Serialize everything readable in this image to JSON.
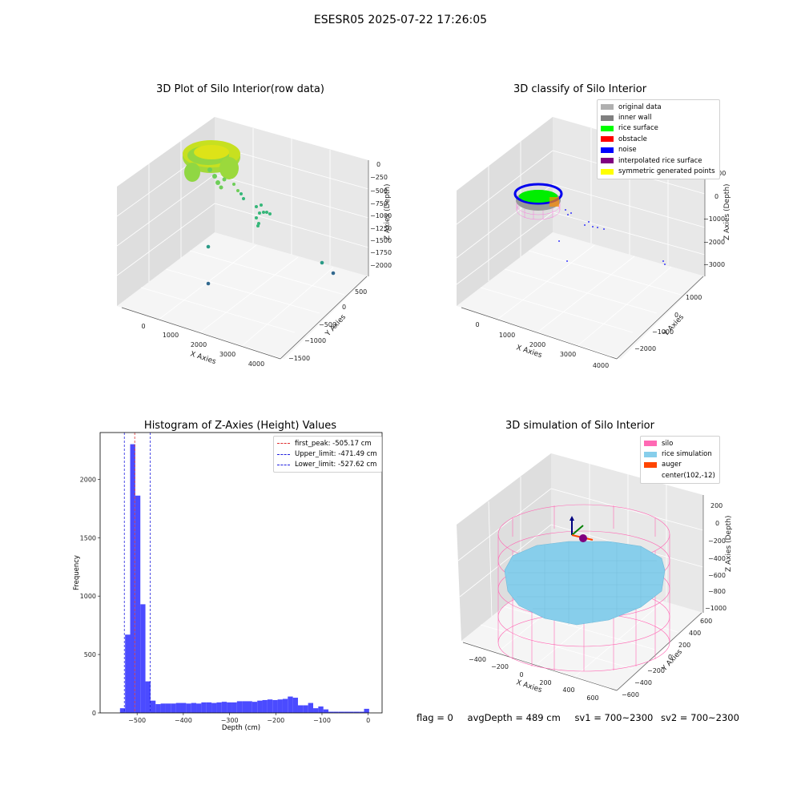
{
  "page": {
    "suptitle": "ESESR05 2025-07-22 17:26:05",
    "status": {
      "flag": "flag = 0",
      "avg_depth": "avgDepth = 489 cm",
      "sv1": "sv1 = 700~2300",
      "sv2": "sv2 = 700~2300"
    }
  },
  "chart_data": [
    {
      "type": "scatter",
      "title": "3D Plot of Silo Interior(row data)",
      "xlabel": "X Axies",
      "ylabel": "Y Axies",
      "zlabel": "Z Axies (Depth)",
      "x_ticks": [
        "0",
        "1000",
        "2000",
        "3000",
        "4000"
      ],
      "y_ticks": [
        "500",
        "0",
        "−500",
        "−1000",
        "−1500"
      ],
      "z_ticks": [
        "0",
        "−250",
        "−500",
        "−750",
        "−1000",
        "−1250",
        "−1500",
        "−1750",
        "−2000"
      ],
      "colormap": [
        "#440154",
        "#31688e",
        "#35b779",
        "#90d743",
        "#fde725"
      ]
    },
    {
      "type": "scatter",
      "title": "3D classify of Silo Interior",
      "xlabel": "X Axies",
      "ylabel": "Y Axies",
      "zlabel": "Z Axies (Depth)",
      "x_ticks": [
        "0",
        "1000",
        "2000",
        "3000",
        "4000"
      ],
      "y_ticks": [
        "1000",
        "0",
        "−1000",
        "−2000"
      ],
      "z_ticks": [
        "1000",
        "0",
        "−1000",
        "−2000",
        "−3000"
      ],
      "legend": [
        {
          "label": "original data",
          "color": "#b0b0b0"
        },
        {
          "label": "inner wall",
          "color": "#808080"
        },
        {
          "label": "rice surface",
          "color": "#00ff00"
        },
        {
          "label": "obstacle",
          "color": "#ff0000"
        },
        {
          "label": "noise",
          "color": "#0000ff"
        },
        {
          "label": "interpolated rice surface",
          "color": "#800080"
        },
        {
          "label": "symmetric generated points",
          "color": "#ffff00"
        }
      ]
    },
    {
      "type": "bar",
      "title": "Histogram of Z-Axies (Height) Values",
      "xlabel": "Depth (cm)",
      "ylabel": "Frequency",
      "xlim": [
        -580,
        30
      ],
      "ylim": [
        0,
        2400
      ],
      "x_ticks": [
        -500,
        -400,
        -300,
        -200,
        -100,
        0
      ],
      "x_tick_labels": [
        "−500",
        "−400",
        "−300",
        "−200",
        "−100",
        "0"
      ],
      "y_ticks": [
        0,
        500,
        1000,
        1500,
        2000
      ],
      "bin_width": 11.0,
      "bin_starts": [
        -537,
        -526,
        -515,
        -504,
        -493,
        -482,
        -471,
        -460,
        -449,
        -438,
        -427,
        -416,
        -405,
        -394,
        -383,
        -372,
        -361,
        -350,
        -339,
        -328,
        -317,
        -306,
        -295,
        -284,
        -273,
        -262,
        -251,
        -240,
        -229,
        -218,
        -207,
        -196,
        -185,
        -174,
        -163,
        -152,
        -141,
        -130,
        -119,
        -108,
        -97,
        -86,
        -75,
        -64,
        -53,
        -42,
        -31,
        -20,
        -9
      ],
      "values": [
        40,
        670,
        2300,
        1860,
        930,
        270,
        105,
        75,
        80,
        80,
        80,
        85,
        85,
        80,
        85,
        80,
        90,
        90,
        85,
        90,
        95,
        90,
        90,
        100,
        100,
        100,
        95,
        105,
        110,
        115,
        110,
        115,
        120,
        140,
        130,
        65,
        65,
        85,
        40,
        55,
        30,
        10,
        10,
        10,
        10,
        10,
        10,
        10,
        35
      ],
      "bar_color": "#4b4bff",
      "lines": [
        {
          "label": "first_peak: -505.17 cm",
          "x": -505.17,
          "color": "#e03030"
        },
        {
          "label": "Upper_limit: -471.49 cm",
          "x": -471.49,
          "color": "#2020e0"
        },
        {
          "label": "Lower_limit: -527.62 cm",
          "x": -527.62,
          "color": "#2020e0"
        }
      ]
    },
    {
      "type": "scatter",
      "title": "3D simulation of Silo Interior",
      "xlabel": "X Axies",
      "ylabel": "Y Axies",
      "zlabel": "Z Axies (Depth)",
      "x_ticks": [
        "−400",
        "−200",
        "0",
        "200",
        "400",
        "600"
      ],
      "y_ticks": [
        "600",
        "400",
        "200",
        "0",
        "−200",
        "−400",
        "−600"
      ],
      "z_ticks": [
        "200",
        "0",
        "−200",
        "−400",
        "−600",
        "−800",
        "−1000"
      ],
      "legend": [
        {
          "label": "silo",
          "color": "#ff69b4"
        },
        {
          "label": "rice simulation",
          "color": "#87ceeb"
        },
        {
          "label": "auger",
          "color": "#ff4500"
        },
        {
          "label": "center(102,-12)",
          "color": ""
        }
      ]
    }
  ]
}
